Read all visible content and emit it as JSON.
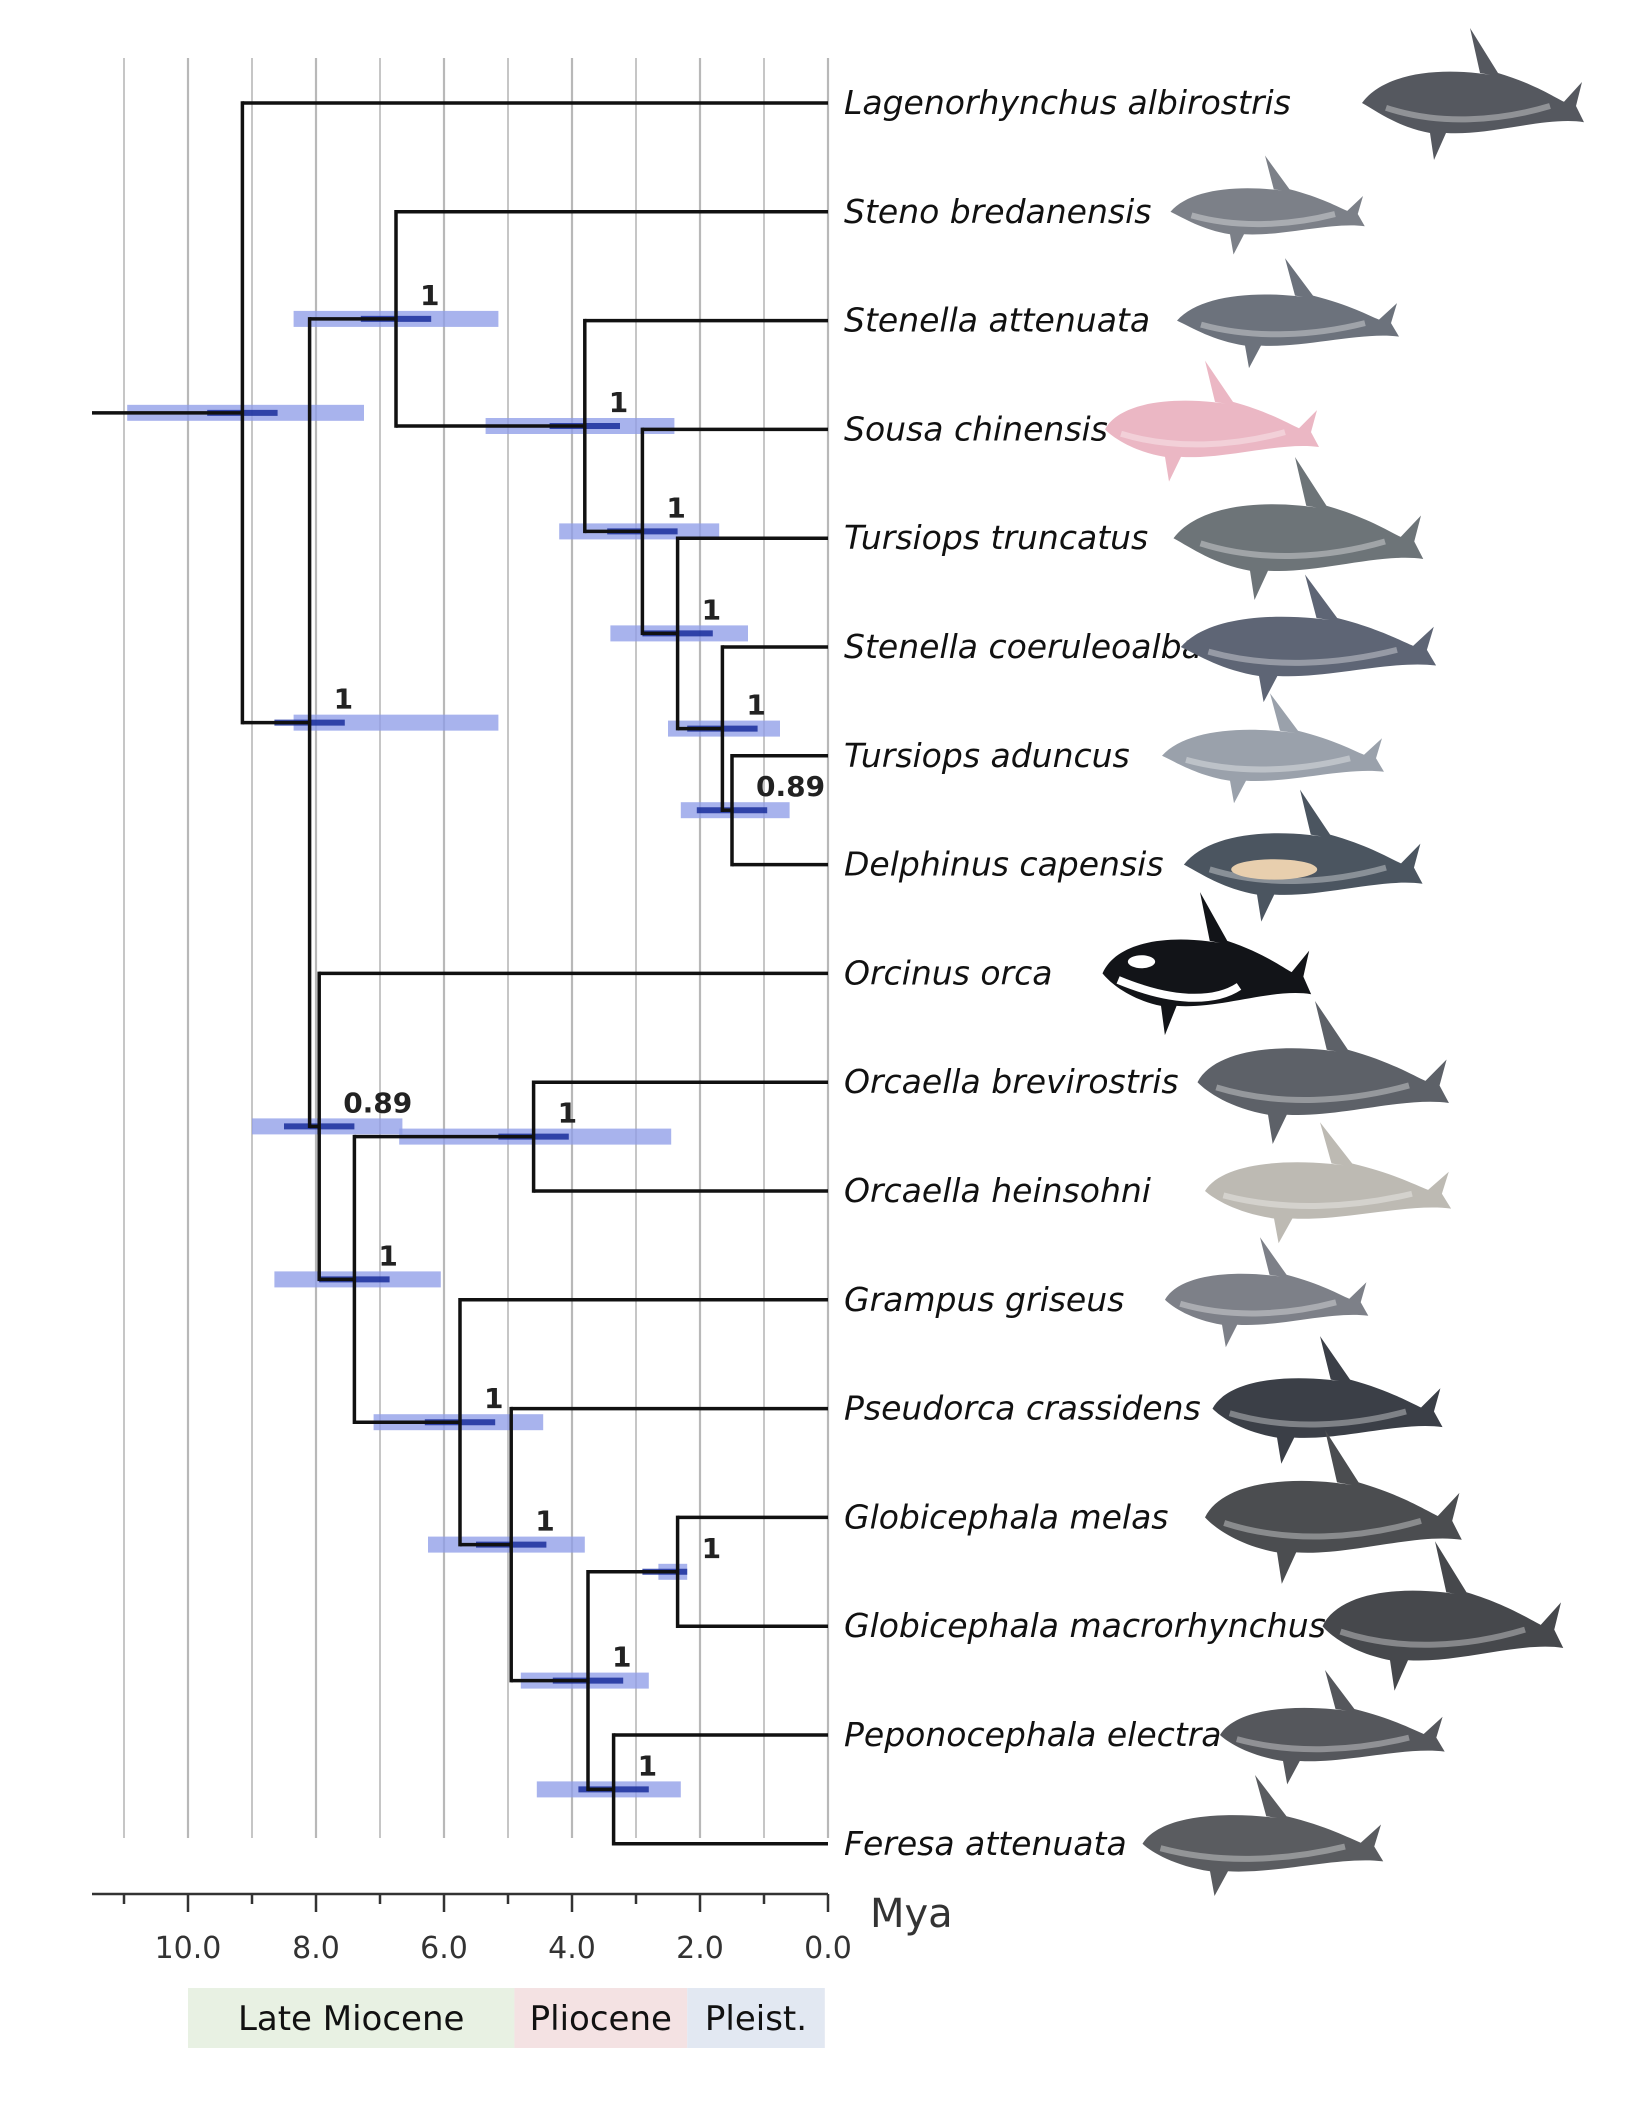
{
  "axis": {
    "unit": "Mya",
    "ticks": [
      {
        "value": 10,
        "label": "10.0"
      },
      {
        "value": 8,
        "label": "8.0"
      },
      {
        "value": 6,
        "label": "6.0"
      },
      {
        "value": 4,
        "label": "4.0"
      },
      {
        "value": 2,
        "label": "2.0"
      },
      {
        "value": 0,
        "label": "0.0"
      }
    ],
    "range": [
      11.5,
      0
    ],
    "gridlines": [
      11,
      10,
      9,
      8,
      7,
      6,
      5,
      4,
      3,
      2,
      1,
      0
    ]
  },
  "epochs": [
    {
      "label": "Late Miocene",
      "from": 10,
      "to": 4.9,
      "color": "#e8f1e3"
    },
    {
      "label": "Pliocene",
      "from": 4.9,
      "to": 2.2,
      "color": "#f4e2e3"
    },
    {
      "label": "Pleist.",
      "from": 2.2,
      "to": 0.05,
      "color": "#e2e8f2"
    }
  ],
  "colors": {
    "branch": "#111111",
    "hpd_bar": "#8f9ee8",
    "hpd_center": "#1a2f9c",
    "grid": "#b8b8b8"
  },
  "taxa": [
    {
      "name": "Lagenorhynchus albirostris",
      "icon": "white-beaked-dolphin-icon",
      "color": "#55585f"
    },
    {
      "name": "Steno bredanensis",
      "icon": "rough-toothed-dolphin-icon",
      "color": "#7c8088"
    },
    {
      "name": "Stenella attenuata",
      "icon": "spotted-dolphin-icon",
      "color": "#6c727c"
    },
    {
      "name": "Sousa chinensis",
      "icon": "humpback-dolphin-icon",
      "color": "#ebb7c4"
    },
    {
      "name": "Tursiops truncatus",
      "icon": "bottlenose-dolphin-icon",
      "color": "#6d7478"
    },
    {
      "name": "Stenella coeruleoalba",
      "icon": "striped-dolphin-icon",
      "color": "#5e6575"
    },
    {
      "name": "Tursiops aduncus",
      "icon": "indo-pacific-bottlenose-icon",
      "color": "#9aa1ab"
    },
    {
      "name": "Delphinus capensis",
      "icon": "common-dolphin-icon",
      "color": "#4b5560"
    },
    {
      "name": "Orcinus orca",
      "icon": "orca-icon",
      "color": "#121418"
    },
    {
      "name": "Orcaella brevirostris",
      "icon": "irrawaddy-dolphin-icon",
      "color": "#5d6168"
    },
    {
      "name": "Orcaella heinsohni",
      "icon": "snubfin-dolphin-icon",
      "color": "#bdbab3"
    },
    {
      "name": "Grampus griseus",
      "icon": "rissos-dolphin-icon",
      "color": "#7d8088"
    },
    {
      "name": "Pseudorca crassidens",
      "icon": "false-killer-whale-icon",
      "color": "#3b3f47"
    },
    {
      "name": "Globicephala melas",
      "icon": "long-finned-pilot-whale-icon",
      "color": "#4b4d50"
    },
    {
      "name": "Globicephala macrorhynchus",
      "icon": "short-finned-pilot-whale-icon",
      "color": "#46484c"
    },
    {
      "name": "Peponocephala electra",
      "icon": "melon-headed-whale-icon",
      "color": "#55575c"
    },
    {
      "name": "Feresa attenuata",
      "icon": "pygmy-killer-whale-icon",
      "color": "#5a5c60"
    }
  ],
  "nodes": [
    {
      "id": "root",
      "age": 9.15,
      "children": [
        0,
        "n_del"
      ],
      "hpd": [
        10.95,
        7.25
      ],
      "support": ""
    },
    {
      "id": "n_del",
      "age": 8.1,
      "children": [
        "n_a",
        "n_b"
      ],
      "hpd": [
        8.35,
        5.15
      ],
      "support": "1"
    },
    {
      "id": "n_a",
      "age": 6.75,
      "children": [
        1,
        "n_c"
      ],
      "hpd": [
        8.35,
        5.15
      ],
      "support": "1"
    },
    {
      "id": "n_c",
      "age": 3.8,
      "children": [
        2,
        "n_d"
      ],
      "hpd": [
        5.35,
        2.4
      ],
      "support": "1"
    },
    {
      "id": "n_d",
      "age": 2.9,
      "children": [
        3,
        "n_e"
      ],
      "hpd": [
        4.2,
        1.7
      ],
      "support": "1"
    },
    {
      "id": "n_e",
      "age": 2.35,
      "children": [
        4,
        "n_f"
      ],
      "hpd": [
        3.4,
        1.25
      ],
      "support": "1"
    },
    {
      "id": "n_f",
      "age": 1.65,
      "children": [
        5,
        "n_g"
      ],
      "hpd": [
        2.5,
        0.75
      ],
      "support": "1"
    },
    {
      "id": "n_g",
      "age": 1.5,
      "children": [
        6,
        7
      ],
      "hpd": [
        2.3,
        0.6
      ],
      "support": "0.89"
    },
    {
      "id": "n_b",
      "age": 7.95,
      "children": [
        8,
        "n_h"
      ],
      "hpd": [
        9.0,
        6.65
      ],
      "support": "0.89"
    },
    {
      "id": "n_h",
      "age": 7.4,
      "children": [
        "n_i",
        "n_j"
      ],
      "hpd": [
        8.65,
        6.05
      ],
      "support": "1"
    },
    {
      "id": "n_i",
      "age": 4.6,
      "children": [
        9,
        10
      ],
      "hpd": [
        6.7,
        2.45
      ],
      "support": "1"
    },
    {
      "id": "n_j",
      "age": 5.75,
      "children": [
        11,
        "n_k"
      ],
      "hpd": [
        7.1,
        4.45
      ],
      "support": "1"
    },
    {
      "id": "n_k",
      "age": 4.95,
      "children": [
        12,
        "n_l"
      ],
      "hpd": [
        6.25,
        3.8
      ],
      "support": "1"
    },
    {
      "id": "n_l",
      "age": 3.75,
      "children": [
        "n_m",
        "n_n"
      ],
      "hpd": [
        4.8,
        2.8
      ],
      "support": "1"
    },
    {
      "id": "n_m",
      "age": 2.35,
      "children": [
        13,
        14
      ],
      "hpd": [
        2.65,
        2.2
      ],
      "support": "1"
    },
    {
      "id": "n_n",
      "age": 3.35,
      "children": [
        15,
        16
      ],
      "hpd": [
        4.55,
        2.3
      ],
      "support": "1"
    }
  ]
}
